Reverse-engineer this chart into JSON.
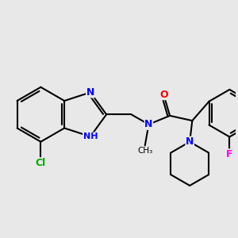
{
  "background_color": "#e8e8e8",
  "bond_color": "#000000",
  "bond_width": 1.5,
  "atom_colors": {
    "N": "#0000ff",
    "O": "#ff0000",
    "Cl": "#00aa00",
    "F": "#ff00ff",
    "H": "#555555",
    "C": "#000000"
  },
  "figsize": [
    3.0,
    3.0
  ],
  "dpi": 100
}
